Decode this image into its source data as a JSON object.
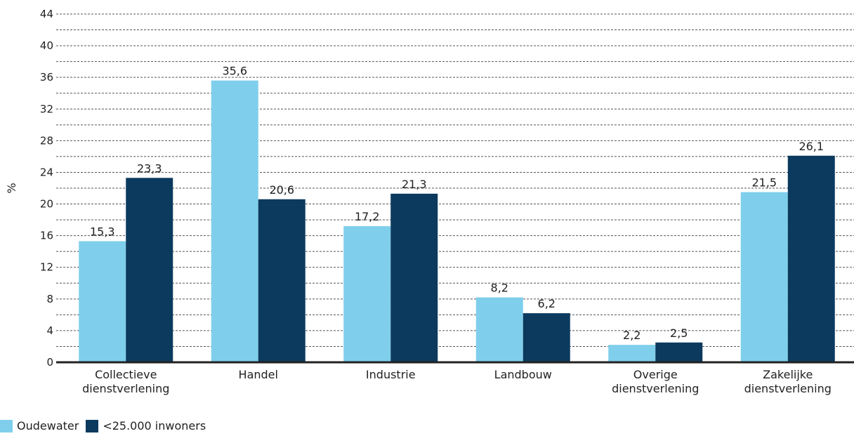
{
  "chart_data": {
    "type": "bar",
    "categories": [
      [
        "Collectieve",
        "dienstverlening"
      ],
      [
        "Handel"
      ],
      [
        "Industrie"
      ],
      [
        "Landbouw"
      ],
      [
        "Overige",
        "dienstverlening"
      ],
      [
        "Zakelijke",
        "dienstverlening"
      ]
    ],
    "series": [
      {
        "name": "Oudewater",
        "color": "#7fcfec",
        "values": [
          15.3,
          35.6,
          17.2,
          8.2,
          2.2,
          21.5
        ],
        "labels": [
          "15,3",
          "35,6",
          "17,2",
          "8,2",
          "2,2",
          "21,5"
        ]
      },
      {
        "name": "<25.000 inwoners",
        "color": "#0b3a5e",
        "values": [
          23.3,
          20.6,
          21.3,
          6.2,
          2.5,
          26.1
        ],
        "labels": [
          "23,3",
          "20,6",
          "21,3",
          "6,2",
          "2,5",
          "26,1"
        ]
      }
    ],
    "ylabel": "%",
    "ylim": [
      0,
      44
    ],
    "yticks": [
      0,
      4,
      8,
      12,
      16,
      20,
      24,
      28,
      32,
      36,
      40,
      44
    ],
    "grid": true,
    "legend_position": "bottom-left"
  }
}
